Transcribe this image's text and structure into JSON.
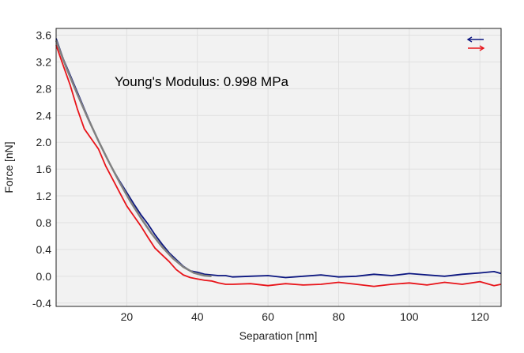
{
  "colors": {
    "plot_background": "#f2f2f2",
    "grid": "#e0e0e0",
    "approach": "#0b1680",
    "retract": "#e8141a",
    "fit": "#808080"
  },
  "chart_data": {
    "type": "line",
    "xlabel": "Separation [nm]",
    "ylabel": "Force [nN]",
    "xlim": [
      0,
      126
    ],
    "ylim": [
      -0.45,
      3.7
    ],
    "xticks": [
      "20",
      "40",
      "60",
      "80",
      "100",
      "120"
    ],
    "yticks": [
      "3.6",
      "3.2",
      "2.8",
      "2.4",
      "2.0",
      "1.6",
      "1.2",
      "0.8",
      "0.4",
      "0.0",
      "-0.4"
    ],
    "grid": true,
    "legend": {
      "position": "top-right",
      "entries": [
        {
          "icon": "arrow-left-icon"
        },
        {
          "icon": "arrow-right-icon"
        }
      ]
    },
    "annotation": "Young's Modulus: 0.998 MPa",
    "series": [
      {
        "role": "approach",
        "color": "#0b1680",
        "x": [
          0,
          2,
          4,
          6,
          8,
          10,
          12,
          14,
          16,
          18,
          20,
          22,
          24,
          26,
          28,
          30,
          32,
          34,
          36,
          38,
          40,
          42,
          44,
          46,
          48,
          50,
          55,
          60,
          65,
          70,
          75,
          80,
          85,
          90,
          95,
          100,
          105,
          110,
          115,
          120,
          124,
          126
        ],
        "y": [
          3.55,
          3.25,
          3.0,
          2.75,
          2.5,
          2.25,
          2.02,
          1.8,
          1.6,
          1.42,
          1.25,
          1.08,
          0.92,
          0.78,
          0.62,
          0.48,
          0.35,
          0.25,
          0.15,
          0.08,
          0.06,
          0.03,
          0.02,
          0.01,
          0.01,
          -0.01,
          0.0,
          0.01,
          -0.02,
          0.0,
          0.02,
          -0.01,
          0.0,
          0.03,
          0.01,
          0.04,
          0.02,
          0.0,
          0.03,
          0.05,
          0.07,
          0.04
        ]
      },
      {
        "role": "retract",
        "color": "#e8141a",
        "x": [
          0,
          2,
          4,
          6,
          8,
          10,
          12,
          14,
          16,
          18,
          20,
          22,
          24,
          26,
          28,
          30,
          32,
          34,
          36,
          38,
          40,
          42,
          44,
          46,
          48,
          50,
          55,
          60,
          65,
          70,
          75,
          80,
          85,
          90,
          95,
          100,
          105,
          110,
          115,
          120,
          124,
          126
        ],
        "y": [
          3.45,
          3.15,
          2.85,
          2.5,
          2.2,
          2.05,
          1.9,
          1.65,
          1.45,
          1.25,
          1.05,
          0.9,
          0.75,
          0.58,
          0.42,
          0.32,
          0.22,
          0.1,
          0.02,
          -0.02,
          -0.04,
          -0.06,
          -0.07,
          -0.1,
          -0.12,
          -0.12,
          -0.11,
          -0.14,
          -0.11,
          -0.13,
          -0.12,
          -0.09,
          -0.12,
          -0.15,
          -0.12,
          -0.1,
          -0.13,
          -0.09,
          -0.12,
          -0.08,
          -0.14,
          -0.12
        ]
      },
      {
        "role": "fit",
        "color": "#808080",
        "x": [
          0,
          3,
          6,
          9,
          12,
          15,
          18,
          21,
          24,
          27,
          30,
          33,
          36,
          39,
          42,
          44
        ],
        "y": [
          3.52,
          3.1,
          2.72,
          2.36,
          2.02,
          1.7,
          1.4,
          1.12,
          0.87,
          0.64,
          0.44,
          0.27,
          0.14,
          0.05,
          0.01,
          0.0
        ]
      }
    ]
  }
}
